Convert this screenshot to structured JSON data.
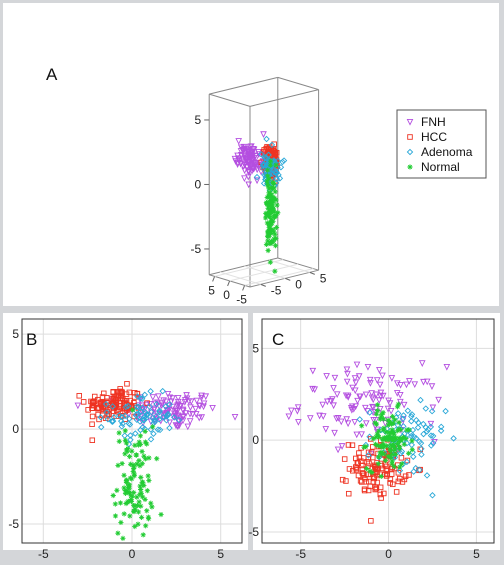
{
  "colors": {
    "FNH": "#b44fe0",
    "HCC": "#ee3322",
    "Adenoma": "#2aa8d8",
    "Normal": "#22cc33"
  },
  "legend": {
    "items": [
      {
        "label": "FNH",
        "series": "FNH",
        "marker": "triangle-down"
      },
      {
        "label": "HCC",
        "series": "HCC",
        "marker": "square"
      },
      {
        "label": "Adenoma",
        "series": "Adenoma",
        "marker": "diamond"
      },
      {
        "label": "Normal",
        "series": "Normal",
        "marker": "star"
      }
    ]
  },
  "chart_data": [
    {
      "panel": "A",
      "type": "scatter",
      "projection": "3d",
      "panel_label": "A",
      "z_ticks": [
        "5",
        "0",
        "-5"
      ],
      "x_ticks": [
        "5",
        "0",
        "-5"
      ],
      "y_ticks": [
        "5",
        "0",
        "-5"
      ],
      "xlim": [
        -7,
        7
      ],
      "ylim": [
        -7,
        7
      ],
      "zlim": [
        -7,
        7
      ],
      "series": [
        {
          "name": "FNH",
          "marker": "triangle-down",
          "clusters": [
            {
              "cx": 3.2,
              "cy": -1.0,
              "cz": 1.6,
              "sx": 2.3,
              "sy": 0.6,
              "sz": 0.6,
              "n": 110
            }
          ]
        },
        {
          "name": "HCC",
          "marker": "square",
          "clusters": [
            {
              "cx": -1.8,
              "cy": 0.0,
              "cz": 1.8,
              "sx": 0.9,
              "sy": 0.5,
              "sz": 0.6,
              "n": 120
            }
          ]
        },
        {
          "name": "Adenoma",
          "marker": "diamond",
          "clusters": [
            {
              "cx": -1.0,
              "cy": 0.5,
              "cz": 1.2,
              "sx": 1.2,
              "sy": 0.8,
              "sz": 0.6,
              "n": 80
            }
          ]
        },
        {
          "name": "Normal",
          "marker": "star",
          "clusters": [
            {
              "cx": -0.3,
              "cy": 1.0,
              "cz": -2.5,
              "sx": 0.5,
              "sy": 0.5,
              "sz": 1.6,
              "n": 110
            }
          ]
        }
      ]
    },
    {
      "panel": "B",
      "type": "scatter",
      "panel_label": "B",
      "x_ticks": [
        -5,
        0,
        5
      ],
      "y_ticks": [
        -5,
        0,
        5
      ],
      "xlim": [
        -6.2,
        6.2
      ],
      "ylim": [
        -6.0,
        5.8
      ],
      "grid": true,
      "series": [
        {
          "name": "FNH",
          "marker": "triangle-down",
          "clusters": [
            {
              "cx": 2.2,
              "cy": 1.0,
              "sx": 1.3,
              "sy": 0.5,
              "n": 110
            }
          ]
        },
        {
          "name": "HCC",
          "marker": "square",
          "clusters": [
            {
              "cx": -1.0,
              "cy": 1.3,
              "sx": 0.8,
              "sy": 0.45,
              "n": 120
            }
          ]
        },
        {
          "name": "Adenoma",
          "marker": "diamond",
          "clusters": [
            {
              "cx": 0.5,
              "cy": 0.6,
              "sx": 0.9,
              "sy": 0.6,
              "n": 80
            }
          ]
        },
        {
          "name": "Normal",
          "marker": "star",
          "clusters": [
            {
              "cx": 0.1,
              "cy": -2.8,
              "sx": 0.55,
              "sy": 1.5,
              "n": 110
            }
          ]
        }
      ]
    },
    {
      "panel": "C",
      "type": "scatter",
      "panel_label": "C",
      "x_ticks": [
        -5,
        0,
        5
      ],
      "y_ticks": [
        -5,
        0,
        5
      ],
      "xlim": [
        -7.2,
        6.0
      ],
      "ylim": [
        -5.6,
        6.6
      ],
      "grid": true,
      "series": [
        {
          "name": "FNH",
          "marker": "triangle-down",
          "clusters": [
            {
              "cx": -1.0,
              "cy": 2.0,
              "sx": 2.0,
              "sy": 1.0,
              "n": 110
            }
          ]
        },
        {
          "name": "HCC",
          "marker": "square",
          "clusters": [
            {
              "cx": -0.6,
              "cy": -1.5,
              "sx": 0.8,
              "sy": 0.75,
              "n": 120
            }
          ]
        },
        {
          "name": "Adenoma",
          "marker": "diamond",
          "clusters": [
            {
              "cx": 1.0,
              "cy": 0.0,
              "sx": 1.1,
              "sy": 1.0,
              "n": 80
            }
          ]
        },
        {
          "name": "Normal",
          "marker": "star",
          "clusters": [
            {
              "cx": 0.0,
              "cy": 0.0,
              "sx": 0.6,
              "sy": 0.8,
              "n": 110
            }
          ]
        }
      ]
    }
  ]
}
